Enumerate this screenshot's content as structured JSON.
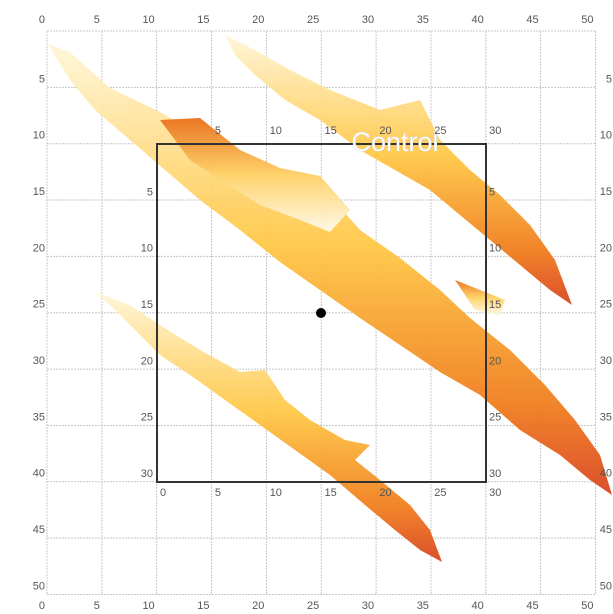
{
  "outer_ticks": [
    0,
    5,
    10,
    15,
    20,
    25,
    30,
    35,
    40,
    45,
    50
  ],
  "inner_ticks": [
    0,
    5,
    10,
    15,
    20,
    25,
    30
  ],
  "label": "Control"
}
